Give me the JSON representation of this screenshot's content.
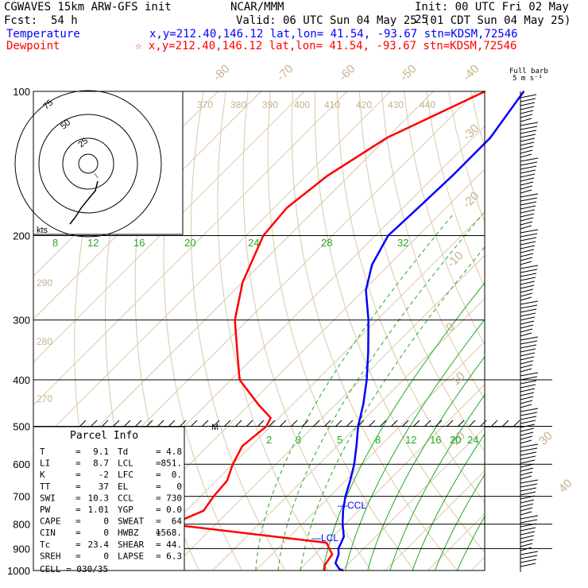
{
  "header": {
    "model": "CGWAVES 15km ARW-GFS init",
    "org": "NCAR/MMM",
    "init": "Init: 00 UTC Fri 02 May 25",
    "fcst_label": "Fcst:",
    "fcst_value": "54 h",
    "valid": "Valid: 06 UTC Sun 04 May 25 (01 CDT Sun 04 May 25)",
    "temp_label": "Temperature",
    "temp_info": "x,y=212.40,146.12   lat,lon= 41.54, -93.67   stn=KDSM,72546",
    "dew_label": "Dewpoint",
    "dew_info": "☆ x,y=212.40,146.12   lat,lon= 41.54, -93.67   stn=KDSM,72546",
    "temp_color": "#0000ff",
    "dew_color": "#ff0000"
  },
  "barb_header": {
    "line1": "Full barb",
    "line2": "5 m s⁻¹"
  },
  "hodograph": {
    "rings": [
      "75",
      "50",
      "25"
    ],
    "units": "kts"
  },
  "parcel_info": {
    "title": "Parcel Info",
    "rows": [
      {
        "k1": "T",
        "v1": "9.1",
        "k2": "Td",
        "v2": "4.8"
      },
      {
        "k1": "LI",
        "v1": "8.7",
        "k2": "LCL",
        "v2": "851."
      },
      {
        "k1": "K",
        "v1": "-2",
        "k2": "LFC",
        "v2": "0."
      },
      {
        "k1": "TT",
        "v1": "37",
        "k2": "EL",
        "v2": "0"
      },
      {
        "k1": "SWI",
        "v1": "10.3",
        "k2": "CCL",
        "v2": "730"
      },
      {
        "k1": "PW",
        "v1": "1.01",
        "k2": "YGP",
        "v2": "0.0"
      },
      {
        "k1": "CAPE",
        "v1": "0",
        "k2": "SWEAT",
        "v2": "64"
      },
      {
        "k1": "CIN",
        "v1": "0",
        "k2": "HWBZ",
        "v2": "1568."
      },
      {
        "k1": "Tc",
        "v1": "23.4",
        "k2": "SHEAR",
        "v2": "44."
      },
      {
        "k1": "SREH",
        "v1": "0",
        "k2": "LAPSE",
        "v2": "6.3"
      }
    ],
    "cell": "CELL = 030/35"
  },
  "chart_data": {
    "type": "line",
    "subtype": "skew-T log-p sounding",
    "y_axis": {
      "scale": "log",
      "ticks": [
        100,
        200,
        300,
        400,
        500,
        600,
        700,
        800,
        900,
        1000
      ],
      "ylim": [
        100,
        1000
      ]
    },
    "isotherm_labels": [
      "-80",
      "-70",
      "-60",
      "-50",
      "-40",
      "-30",
      "-20",
      "-10",
      "0",
      "10",
      "20",
      "30",
      "40"
    ],
    "theta_labels": [
      "370",
      "380",
      "390",
      "400",
      "410",
      "420",
      "430",
      "440",
      "290",
      "280",
      "270"
    ],
    "mixing_ratio_labels": [
      "8",
      "12",
      "16",
      "20",
      "24",
      "28",
      "32",
      "2",
      "3",
      "5",
      "8",
      "12",
      "16",
      "20",
      "24"
    ],
    "annotations": [
      "CCL",
      "LCL",
      "M"
    ],
    "series": [
      {
        "name": "Temperature",
        "color": "#0000ff",
        "points": [
          {
            "p": 1000,
            "t": 10.3
          },
          {
            "p": 993,
            "t": 9.1
          },
          {
            "p": 965,
            "t": 6.8
          },
          {
            "p": 925,
            "t": 5.5
          },
          {
            "p": 900,
            "t": 4.1
          },
          {
            "p": 875,
            "t": 3.4
          },
          {
            "p": 850,
            "t": 2.6
          },
          {
            "p": 800,
            "t": -0.6
          },
          {
            "p": 750,
            "t": -3.6
          },
          {
            "p": 700,
            "t": -6.4
          },
          {
            "p": 650,
            "t": -8.9
          },
          {
            "p": 600,
            "t": -11.8
          },
          {
            "p": 550,
            "t": -15.5
          },
          {
            "p": 500,
            "t": -19.7
          },
          {
            "p": 450,
            "t": -23.6
          },
          {
            "p": 400,
            "t": -28.5
          },
          {
            "p": 350,
            "t": -34.6
          },
          {
            "p": 300,
            "t": -42.0
          },
          {
            "p": 260,
            "t": -49.5
          },
          {
            "p": 230,
            "t": -54.0
          },
          {
            "p": 200,
            "t": -57.0
          },
          {
            "p": 175,
            "t": -56.5
          },
          {
            "p": 150,
            "t": -56.0
          },
          {
            "p": 125,
            "t": -56.0
          },
          {
            "p": 100,
            "t": -59.0
          }
        ]
      },
      {
        "name": "Dewpoint",
        "color": "#ff0000",
        "points": [
          {
            "p": 1000,
            "t": 6.0
          },
          {
            "p": 975,
            "t": 4.8
          },
          {
            "p": 925,
            "t": 4.0
          },
          {
            "p": 900,
            "t": 2.0
          },
          {
            "p": 875,
            "t": 0.0
          },
          {
            "p": 800,
            "t": -41.0
          },
          {
            "p": 780,
            "t": -38.5
          },
          {
            "p": 750,
            "t": -36.0
          },
          {
            "p": 700,
            "t": -37.0
          },
          {
            "p": 650,
            "t": -37.5
          },
          {
            "p": 600,
            "t": -40.0
          },
          {
            "p": 550,
            "t": -42.0
          },
          {
            "p": 500,
            "t": -41.0
          },
          {
            "p": 480,
            "t": -42.0
          },
          {
            "p": 450,
            "t": -48.0
          },
          {
            "p": 400,
            "t": -58.0
          },
          {
            "p": 350,
            "t": -65.0
          },
          {
            "p": 300,
            "t": -73.0
          },
          {
            "p": 250,
            "t": -80.0
          },
          {
            "p": 200,
            "t": -86.0
          },
          {
            "p": 175,
            "t": -87.0
          },
          {
            "p": 150,
            "t": -85.0
          },
          {
            "p": 125,
            "t": -80.0
          },
          {
            "p": 100,
            "t": -68.0
          }
        ]
      }
    ]
  }
}
